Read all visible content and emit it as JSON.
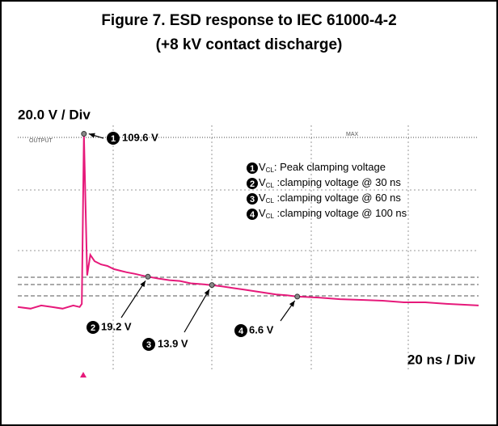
{
  "chart_data": {
    "type": "line",
    "title": "Figure 7. ESD response to IEC 61000-4-2",
    "subtitle": "(+8 kV contact discharge)",
    "y_label": "20.0 V / Div",
    "x_label": "20 ns / Div",
    "trace_label": "OUTPUT",
    "max_label": "MAX",
    "xlim": [
      -31,
      185
    ],
    "ylim": [
      -41,
      115
    ],
    "series": [
      {
        "name": "OUTPUT",
        "color": "#e6197a",
        "x": [
          -31,
          -25,
          -20,
          -15,
          -10,
          -5,
          -2,
          -1,
          0,
          1.5,
          3,
          5,
          8,
          11,
          14,
          17,
          20,
          24,
          27,
          30,
          35,
          40,
          45,
          50,
          55,
          60,
          65,
          70,
          75,
          80,
          85,
          90,
          95,
          100,
          110,
          120,
          130,
          140,
          150,
          160,
          170,
          185
        ],
        "values": [
          0,
          -1,
          1,
          0,
          -1,
          1,
          0,
          2,
          109.6,
          20,
          33,
          29,
          27,
          26,
          24,
          23,
          22,
          21,
          20,
          19.2,
          18,
          17,
          16.5,
          15,
          14.5,
          13.9,
          13,
          12,
          11,
          10,
          9,
          8,
          7.5,
          6.6,
          6,
          5,
          4.5,
          4,
          3,
          3,
          2,
          1
        ]
      }
    ],
    "annotations": [
      {
        "num": "1",
        "x": 0,
        "y": 109.6,
        "label": "109.6 V"
      },
      {
        "num": "2",
        "x": 30,
        "y": 19.2,
        "label": "19.2 V"
      },
      {
        "num": "3",
        "x": 60,
        "y": 13.9,
        "label": "13.9 V"
      },
      {
        "num": "4",
        "x": 100,
        "y": 6.6,
        "label": "6.6 V"
      }
    ],
    "legend": [
      {
        "num": "1",
        "sym": "V",
        "sub": "CL",
        "text": ": Peak clamping voltage"
      },
      {
        "num": "2",
        "sym": "V",
        "sub": "CL",
        "text": " :clamping voltage @ 30 ns"
      },
      {
        "num": "3",
        "sym": "V",
        "sub": "CL",
        "text": " :clamping voltage @ 60 ns"
      },
      {
        "num": "4",
        "sym": "V",
        "sub": "CL",
        "text": " :clamping voltage @ 100 ns"
      }
    ]
  }
}
